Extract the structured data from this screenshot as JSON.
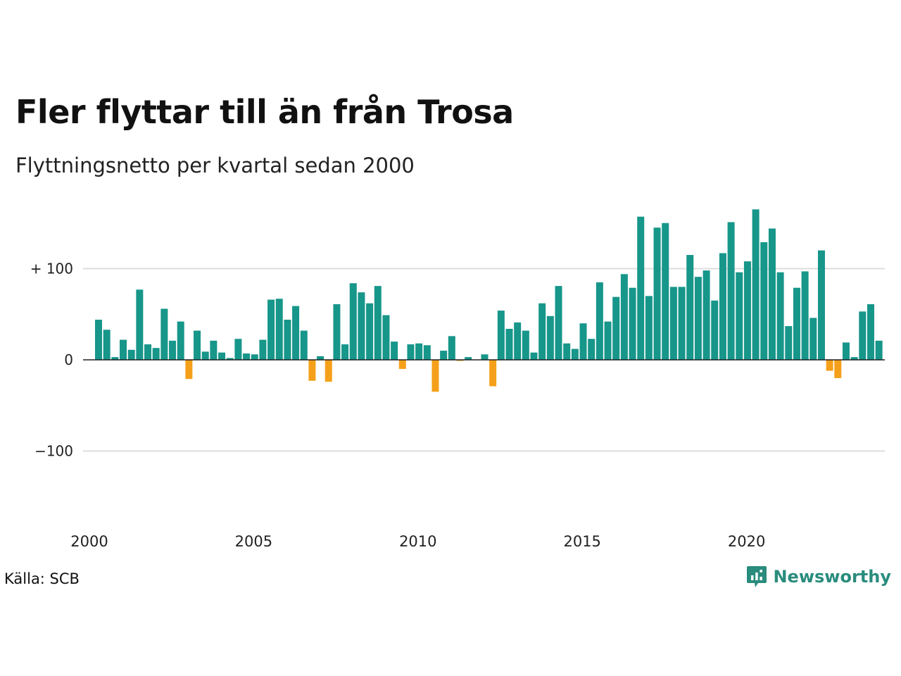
{
  "title": "Fler flyttar till än från Trosa",
  "subtitle": "Flyttningsnetto per kvartal sedan 2000",
  "source": "Källa: SCB",
  "brand": {
    "name": "Newsworthy",
    "icon": "newsworthy-logo-icon"
  },
  "colors": {
    "positive": "#17968a",
    "negative": "#f5a01a",
    "grid": "#dddddd",
    "zero_line": "#222222",
    "brand": "#2a8c7d"
  },
  "chart_data": {
    "type": "bar",
    "title": "Fler flyttar till än från Trosa",
    "subtitle": "Flyttningsnetto per kvartal sedan 2000",
    "start": "2000 Q1",
    "frequency": "quarterly",
    "x_ticks": [
      "2000",
      "2005",
      "2010",
      "2015",
      "2020"
    ],
    "y_ticks": [
      {
        "value": 100,
        "label": "+ 100"
      },
      {
        "value": 0,
        "label": "0"
      },
      {
        "value": -100,
        "label": "−100"
      }
    ],
    "ylim": [
      -160,
      170
    ],
    "grid": true,
    "values": [
      44,
      33,
      3,
      22,
      11,
      77,
      17,
      13,
      56,
      21,
      42,
      -21,
      32,
      9,
      21,
      8,
      2,
      23,
      7,
      6,
      22,
      66,
      67,
      44,
      59,
      32,
      -23,
      4,
      -24,
      61,
      17,
      84,
      74,
      62,
      81,
      49,
      20,
      -10,
      17,
      18,
      16,
      -35,
      10,
      26,
      -1,
      3,
      0,
      6,
      -29,
      54,
      34,
      41,
      32,
      8,
      62,
      48,
      81,
      18,
      12,
      40,
      23,
      85,
      42,
      69,
      94,
      79,
      157,
      70,
      145,
      150,
      80,
      80,
      115,
      91,
      98,
      65,
      117,
      151,
      96,
      108,
      165,
      129,
      144,
      96,
      37,
      79,
      97,
      46,
      120,
      -12,
      -20,
      19,
      3,
      53,
      61,
      21
    ]
  }
}
